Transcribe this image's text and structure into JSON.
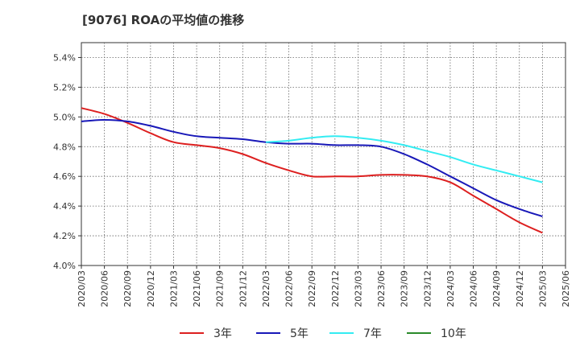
{
  "title": "[9076]  ROAの平均値の推移",
  "chart_data": {
    "type": "line",
    "title": "[9076]  ROAの平均値の推移",
    "xlabel": "",
    "ylabel": "",
    "ylim": [
      4.0,
      5.5
    ],
    "yticks": [
      "4.0%",
      "4.2%",
      "4.4%",
      "4.6%",
      "4.8%",
      "5.0%",
      "5.2%",
      "5.4%"
    ],
    "ytick_values": [
      4.0,
      4.2,
      4.4,
      4.6,
      4.8,
      5.0,
      5.2,
      5.4
    ],
    "x": [
      "2020/03",
      "2020/06",
      "2020/09",
      "2020/12",
      "2021/03",
      "2021/06",
      "2021/09",
      "2021/12",
      "2022/03",
      "2022/06",
      "2022/09",
      "2022/12",
      "2023/03",
      "2023/06",
      "2023/09",
      "2023/12",
      "2024/03",
      "2024/06",
      "2024/09",
      "2024/12",
      "2025/03",
      "2025/06"
    ],
    "grid": true,
    "legend_position": "bottom",
    "series": [
      {
        "name": "3年",
        "color": "#dd1f1f",
        "values": [
          5.06,
          5.02,
          4.96,
          4.89,
          4.83,
          4.81,
          4.79,
          4.75,
          4.69,
          4.64,
          4.6,
          4.6,
          4.6,
          4.61,
          4.61,
          4.6,
          4.56,
          4.47,
          4.38,
          4.29,
          4.22,
          null
        ]
      },
      {
        "name": "5年",
        "color": "#1818b8",
        "values": [
          4.97,
          4.98,
          4.97,
          4.94,
          4.9,
          4.87,
          4.86,
          4.85,
          4.83,
          4.82,
          4.82,
          4.81,
          4.81,
          4.8,
          4.75,
          4.68,
          4.6,
          4.52,
          4.44,
          4.38,
          4.33,
          null
        ]
      },
      {
        "name": "7年",
        "color": "#33ecf2",
        "values": [
          null,
          null,
          null,
          null,
          null,
          null,
          null,
          null,
          4.83,
          4.84,
          4.86,
          4.87,
          4.86,
          4.84,
          4.81,
          4.77,
          4.73,
          4.68,
          4.64,
          4.6,
          4.56,
          null
        ]
      },
      {
        "name": "10年",
        "color": "#2a8a2a",
        "values": [
          null,
          null,
          null,
          null,
          null,
          null,
          null,
          null,
          null,
          null,
          null,
          null,
          null,
          null,
          null,
          null,
          null,
          null,
          null,
          null,
          null,
          null
        ]
      }
    ]
  }
}
